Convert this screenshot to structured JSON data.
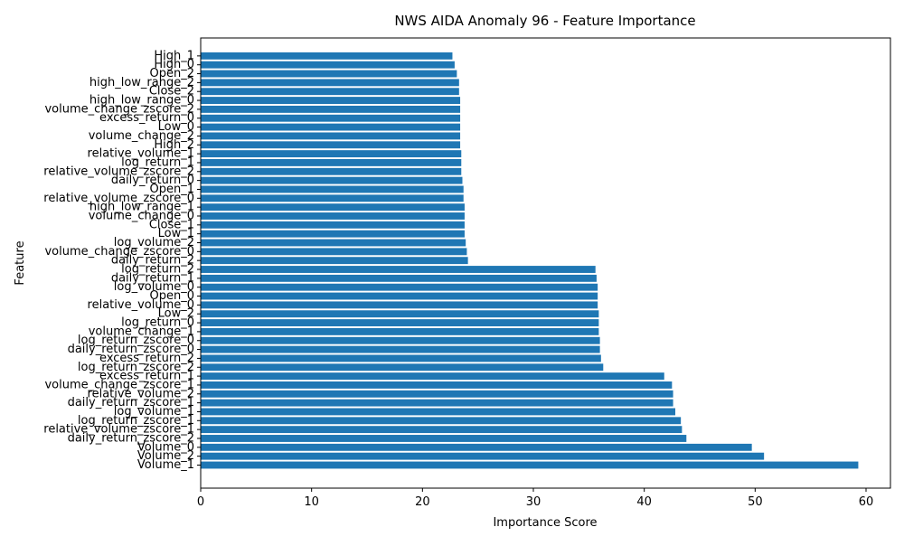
{
  "chart_data": {
    "type": "bar",
    "orientation": "horizontal",
    "title": "NWS AIDA Anomaly 96 - Feature Importance",
    "xlabel": "Importance Score",
    "ylabel": "Feature",
    "xlim": [
      0,
      62.2
    ],
    "xticks": [
      0,
      10,
      20,
      30,
      40,
      50,
      60
    ],
    "grid": false,
    "bar_color": "#1f77b4",
    "categories": [
      "Volume_1",
      "Volume_2",
      "Volume_0",
      "daily_return_zscore_2",
      "relative_volume_zscore_1",
      "log_return_zscore_1",
      "log_volume_1",
      "daily_return_zscore_1",
      "relative_volume_2",
      "volume_change_zscore_1",
      "excess_return_1",
      "log_return_zscore_2",
      "excess_return_2",
      "daily_return_zscore_0",
      "log_return_zscore_0",
      "volume_change_1",
      "log_return_0",
      "Low_2",
      "relative_volume_0",
      "Open_0",
      "log_volume_0",
      "daily_return_1",
      "log_return_2",
      "daily_return_2",
      "volume_change_zscore_0",
      "log_volume_2",
      "Low_1",
      "Close_1",
      "volume_change_0",
      "high_low_range_1",
      "relative_volume_zscore_0",
      "Open_1",
      "daily_return_0",
      "relative_volume_zscore_2",
      "log_return_1",
      "relative_volume_1",
      "High_2",
      "volume_change_2",
      "Low_0",
      "excess_return_0",
      "volume_change_zscore_2",
      "high_low_range_0",
      "Close_2",
      "high_low_range_2",
      "Open_2",
      "High_0",
      "High_1"
    ],
    "values": [
      59.3,
      50.8,
      49.7,
      43.8,
      43.4,
      43.3,
      42.8,
      42.6,
      42.6,
      42.5,
      41.8,
      36.3,
      36.1,
      36.0,
      36.0,
      35.9,
      35.9,
      35.9,
      35.8,
      35.8,
      35.8,
      35.7,
      35.6,
      24.1,
      24.0,
      23.9,
      23.8,
      23.8,
      23.8,
      23.8,
      23.7,
      23.7,
      23.6,
      23.5,
      23.5,
      23.5,
      23.4,
      23.4,
      23.4,
      23.4,
      23.4,
      23.4,
      23.3,
      23.3,
      23.1,
      22.9,
      22.7
    ]
  }
}
